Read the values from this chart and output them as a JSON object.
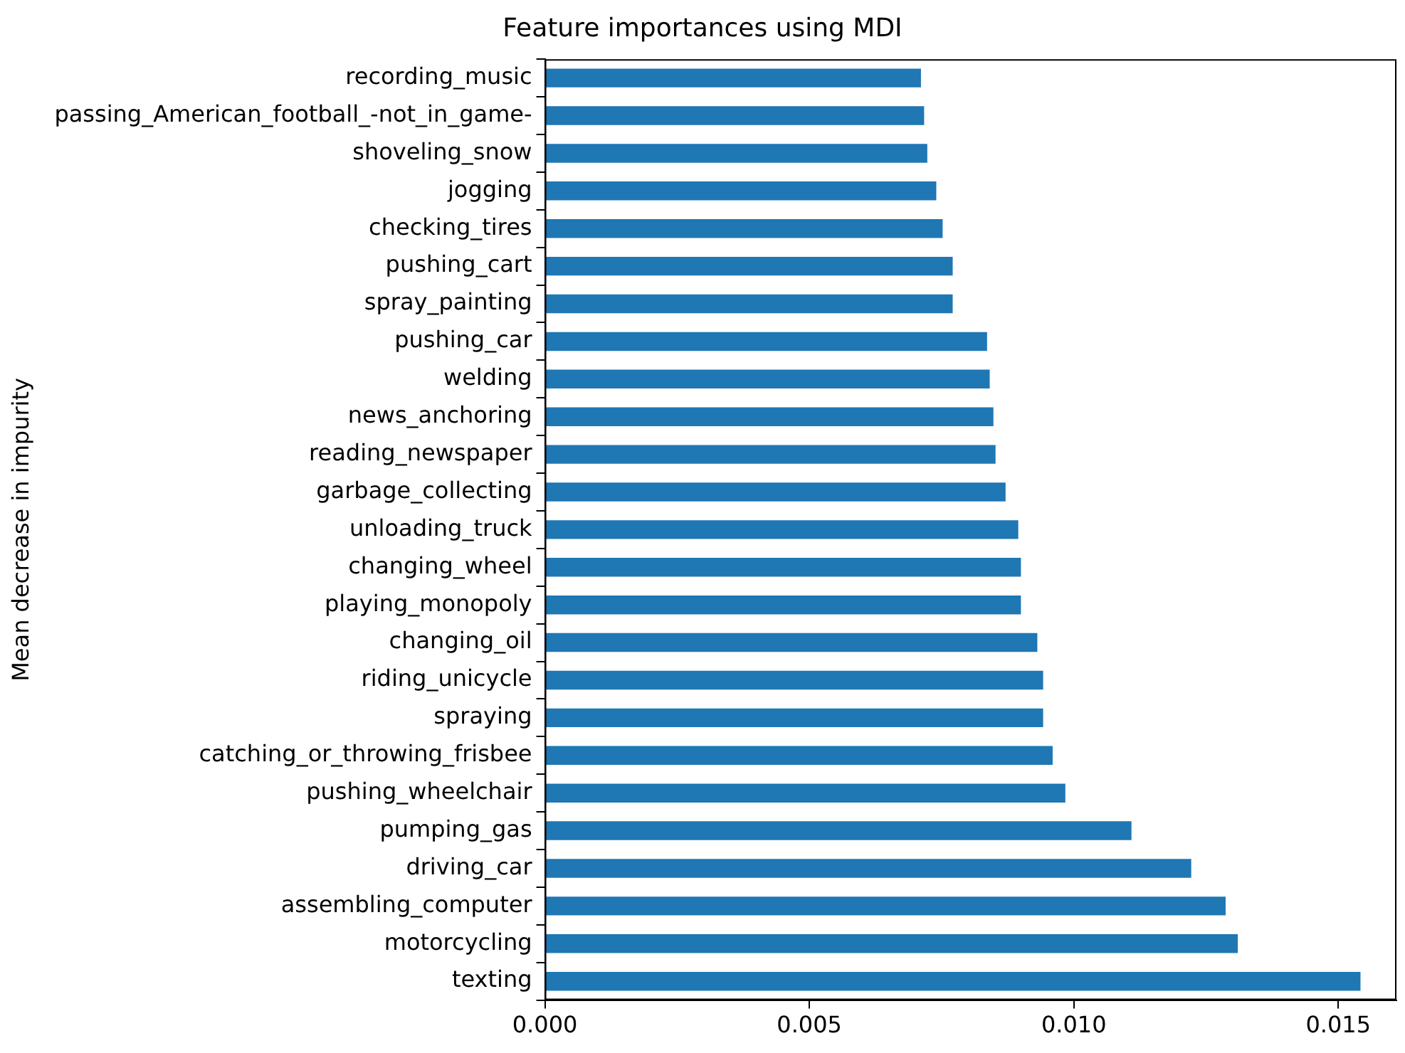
{
  "chart_data": {
    "type": "bar",
    "orientation": "horizontal",
    "title": "Feature importances using MDI",
    "ylabel": "Mean decrease in impurity",
    "categories": [
      "recording_music",
      "passing_American_football_-not_in_game-",
      "shoveling_snow",
      "jogging",
      "checking_tires",
      "pushing_cart",
      "spray_painting",
      "pushing_car",
      "welding",
      "news_anchoring",
      "reading_newspaper",
      "garbage_collecting",
      "unloading_truck",
      "changing_wheel",
      "playing_monopoly",
      "changing_oil",
      "riding_unicycle",
      "spraying",
      "catching_or_throwing_frisbee",
      "pushing_wheelchair",
      "pumping_gas",
      "driving_car",
      "assembling_computer",
      "motorcycling",
      "texting"
    ],
    "values": [
      0.00711,
      0.00717,
      0.00723,
      0.0074,
      0.00752,
      0.00771,
      0.00771,
      0.00836,
      0.00841,
      0.00848,
      0.00852,
      0.00871,
      0.00895,
      0.009,
      0.009,
      0.00931,
      0.00942,
      0.00942,
      0.0096,
      0.00984,
      0.01109,
      0.01222,
      0.01287,
      0.0131,
      0.01542
    ],
    "color": "#1f77b4",
    "xlim": [
      0,
      0.0161
    ],
    "xticks": [
      {
        "value": 0,
        "label": "0.000"
      },
      {
        "value": 0.005,
        "label": "0.005"
      },
      {
        "value": 0.01,
        "label": "0.010"
      },
      {
        "value": 0.015,
        "label": "0.015"
      }
    ],
    "grid": false,
    "legend": false
  }
}
